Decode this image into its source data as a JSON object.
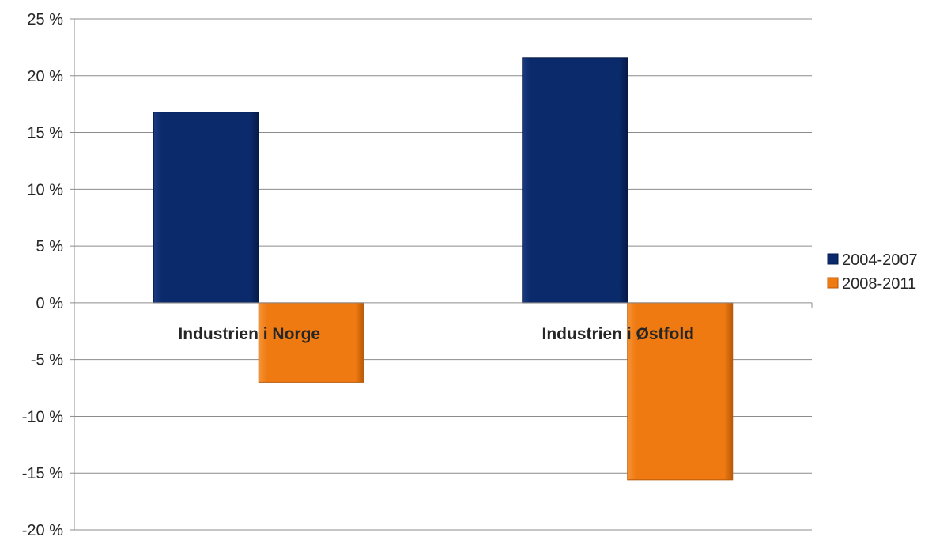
{
  "chart_data": {
    "type": "bar",
    "categories": [
      "Industrien i Norge",
      "Industrien i Østfold"
    ],
    "series": [
      {
        "name": "2004-2007",
        "values": [
          16.8,
          21.6
        ],
        "color": "#0a2a6b"
      },
      {
        "name": "2008-2011",
        "values": [
          -7.0,
          -15.6
        ],
        "color": "#f07a12"
      }
    ],
    "ylim": [
      -20,
      25
    ],
    "yticks": [
      25,
      20,
      15,
      10,
      5,
      0,
      -5,
      -10,
      -15,
      -20
    ],
    "ytick_labels": [
      "25 %",
      "20 %",
      "15 %",
      "10 %",
      "5 %",
      "0 %",
      "-5 %",
      "-10 %",
      "-15 %",
      "-20 %"
    ],
    "grid": true,
    "legend_position": "right",
    "title": "",
    "xlabel": "",
    "ylabel": ""
  }
}
